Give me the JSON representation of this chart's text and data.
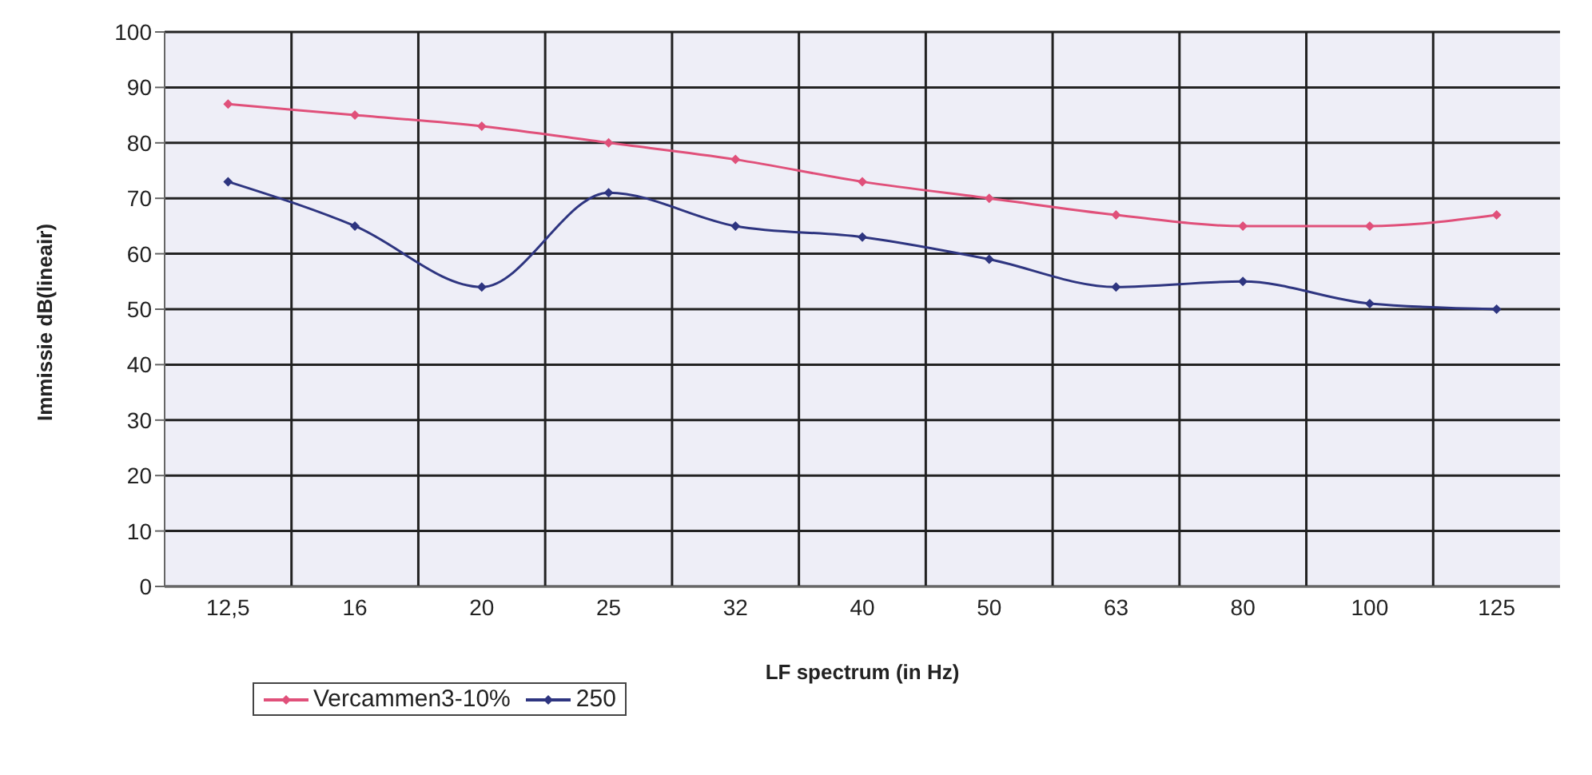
{
  "chart_data": {
    "type": "line",
    "xlabel": "LF spectrum (in Hz)",
    "ylabel": "Immissie dB(lineair)",
    "categories": [
      "12,5",
      "16",
      "20",
      "25",
      "32",
      "40",
      "50",
      "63",
      "80",
      "100",
      "125"
    ],
    "series": [
      {
        "name": "Vercammen3-10%",
        "color": "#e0507a",
        "values": [
          87,
          85,
          83,
          80,
          77,
          73,
          70,
          67,
          65,
          65,
          67
        ]
      },
      {
        "name": "250",
        "color": "#2e3580",
        "values": [
          73,
          65,
          54,
          71,
          65,
          63,
          59,
          54,
          55,
          51,
          50
        ]
      }
    ],
    "ylim": [
      0,
      100
    ],
    "yticks": [
      0,
      10,
      20,
      30,
      40,
      50,
      60,
      70,
      80,
      90,
      100
    ],
    "grid": true,
    "legend": "bottom left",
    "marker": "diamond",
    "line_style": "solid"
  }
}
